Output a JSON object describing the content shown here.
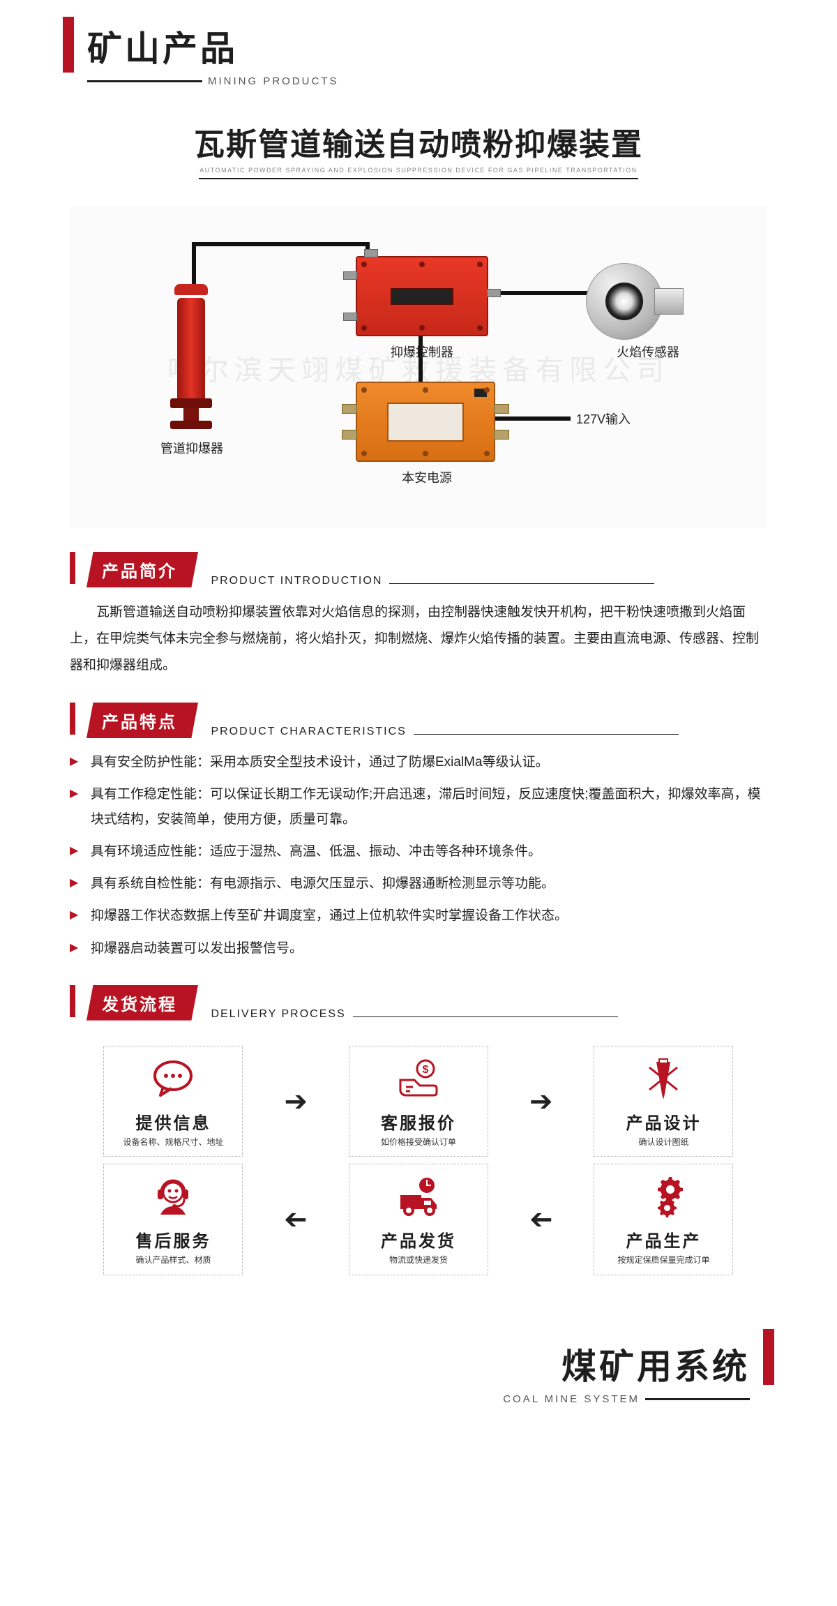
{
  "colors": {
    "brand_red": "#b81322",
    "device_red": "#d6281c",
    "device_orange": "#e77d1f",
    "text": "#1e1e1e",
    "bg_light": "#fbfbfb",
    "flow_border": "#b0b0b0"
  },
  "header": {
    "cn": "矿山产品",
    "en": "MINING PRODUCTS"
  },
  "product_title": {
    "cn": "瓦斯管道输送自动喷粉抑爆装置",
    "en": "AUTOMATIC POWDER SPRAYING AND EXPLOSION SUPPRESSION DEVICE FOR GAS PIPELINE TRANSPORTATION"
  },
  "watermark": "哈尔滨天翊煤矿救援装备有限公司",
  "diagram": {
    "labels": {
      "suppressor": "管道抑爆器",
      "controller": "抑爆控制器",
      "sensor": "火焰传感器",
      "power": "本安电源",
      "input": "127V输入"
    }
  },
  "sections": {
    "intro": {
      "tab": "产品简介",
      "en": "PRODUCT INTRODUCTION",
      "text": "瓦斯管道输送自动喷粉抑爆装置依靠对火焰信息的探测，由控制器快速触发快开机构，把干粉快速喷撒到火焰面上，在甲烷类气体未完全参与燃烧前，将火焰扑灭，抑制燃烧、爆炸火焰传播的装置。主要由直流电源、传感器、控制器和抑爆器组成。"
    },
    "features": {
      "tab": "产品特点",
      "en": "PRODUCT CHARACTERISTICS",
      "items": [
        "具有安全防护性能：采用本质安全型技术设计，通过了防爆ExialMa等级认证。",
        "具有工作稳定性能：可以保证长期工作无误动作;开启迅速，滞后时间短，反应速度快;覆盖面积大，抑爆效率高，模块式结构，安装简单，使用方便，质量可靠。",
        "具有环境适应性能：适应于湿热、高温、低温、振动、冲击等各种环境条件。",
        "具有系统自检性能：有电源指示、电源欠压显示、抑爆器通断检测显示等功能。",
        "抑爆器工作状态数据上传至矿井调度室，通过上位机软件实时掌握设备工作状态。",
        "抑爆器启动装置可以发出报警信号。"
      ]
    },
    "delivery": {
      "tab": "发货流程",
      "en": "DELIVERY PROCESS",
      "steps": [
        {
          "icon": "chat",
          "title": "提供信息",
          "sub": "设备名称、规格尺寸、地址"
        },
        {
          "icon": "quote",
          "title": "客服报价",
          "sub": "如价格接受确认订单"
        },
        {
          "icon": "design",
          "title": "产品设计",
          "sub": "确认设计图纸"
        },
        {
          "icon": "service",
          "title": "售后服务",
          "sub": "确认产品样式、材质"
        },
        {
          "icon": "ship",
          "title": "产品发货",
          "sub": "物流或快递发货"
        },
        {
          "icon": "produce",
          "title": "产品生产",
          "sub": "按规定保质保量完成订单"
        }
      ]
    }
  },
  "footer": {
    "cn": "煤矿用系统",
    "en": "COAL MINE SYSTEM"
  }
}
